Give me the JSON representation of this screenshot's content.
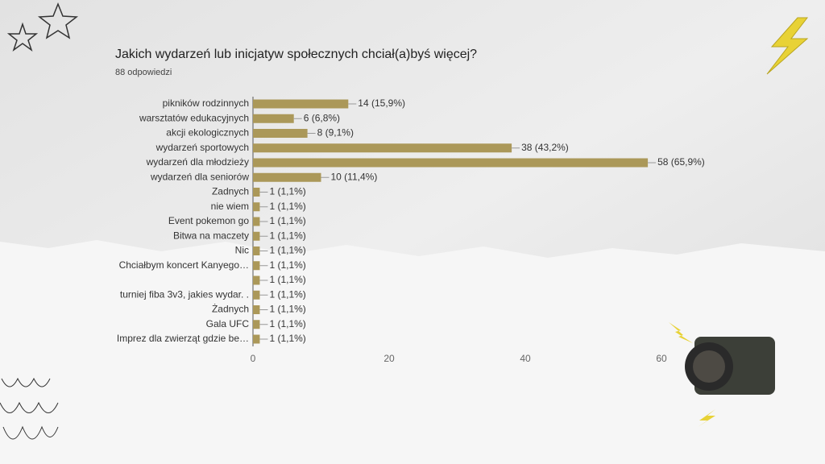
{
  "chart_data": {
    "type": "bar",
    "orientation": "horizontal",
    "title": "Jakich wydarzeń lub inicjatyw społecznych chciał(a)byś więcej?",
    "subtitle": "88 odpowiedzi",
    "categories": [
      "pikników rodzinnych",
      "warsztatów edukacyjnych",
      "akcji ekologicznych",
      "wydarzeń sportowych",
      "wydarzeń dla młodzieży",
      "wydarzeń dla seniorów",
      "Zadnych",
      "nie wiem",
      "Event pokemon go",
      "Bitwa na maczety",
      "Nic",
      "Chciałbym koncert Kanyego…",
      null,
      "turniej fiba 3v3, jakies wydar. .",
      "Żadnych",
      "Gala UFC",
      "Imprez dla zwierząt gdzie be…"
    ],
    "values": [
      14,
      6,
      8,
      38,
      58,
      10,
      1,
      1,
      1,
      1,
      1,
      1,
      1,
      1,
      1,
      1,
      1
    ],
    "value_labels": [
      "14 (15,9%)",
      "6 (6,8%)",
      "8 (9,1%)",
      "38 (43,2%)",
      "58 (65,9%)",
      "10 (11,4%)",
      "1 (1,1%)",
      "1 (1,1%)",
      "1 (1,1%)",
      "1 (1,1%)",
      "1 (1,1%)",
      "1 (1,1%)",
      "1 (1,1%)",
      "1 (1,1%)",
      "1 (1,1%)",
      "1 (1,1%)",
      "1 (1,1%)"
    ],
    "color": "#ab9859",
    "xlim": [
      0,
      70
    ],
    "xticks": [
      0,
      20,
      40,
      60
    ],
    "grid": false
  }
}
